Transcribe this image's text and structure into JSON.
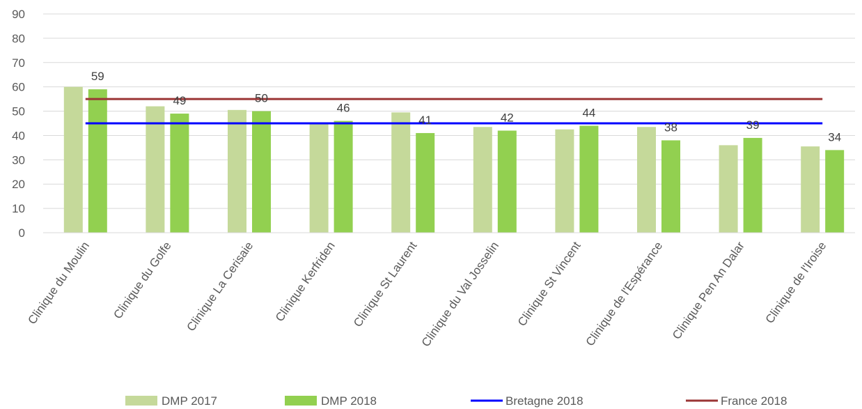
{
  "chart_data": {
    "type": "bar",
    "categories": [
      "Clinique du Moulin",
      "Clinique du Golfe",
      "Clinique La Cerisaie",
      "Clinique Kerfriden",
      "Clinique St Laurent",
      "Clinique du Val Josselin",
      "Clinique St Vincent",
      "Clinique de l'Espérance",
      "Clinique Pen An Dalar",
      "Clinique de l'Iroise"
    ],
    "series": [
      {
        "name": "DMP 2017",
        "kind": "bar",
        "color": "#c5d99a",
        "values": [
          60,
          52,
          50.5,
          45,
          49.5,
          43.5,
          42.5,
          43.5,
          36,
          35.5
        ]
      },
      {
        "name": "DMP 2018",
        "kind": "bar",
        "color": "#92d050",
        "values": [
          59,
          49,
          50,
          46,
          41,
          42,
          44,
          38,
          39,
          34
        ],
        "data_labels": [
          "59",
          "49",
          "50",
          "46",
          "41",
          "42",
          "44",
          "38",
          "39",
          "34"
        ]
      },
      {
        "name": "Bretagne 2018",
        "kind": "line",
        "color": "#0000ff",
        "value": 45
      },
      {
        "name": "France 2018",
        "kind": "line",
        "color": "#9b3535",
        "value": 55
      }
    ],
    "ylim": [
      0,
      90
    ],
    "yticks": [
      "0",
      "10",
      "20",
      "30",
      "40",
      "50",
      "60",
      "70",
      "80",
      "90"
    ],
    "grid": true,
    "legend_position": "bottom"
  }
}
